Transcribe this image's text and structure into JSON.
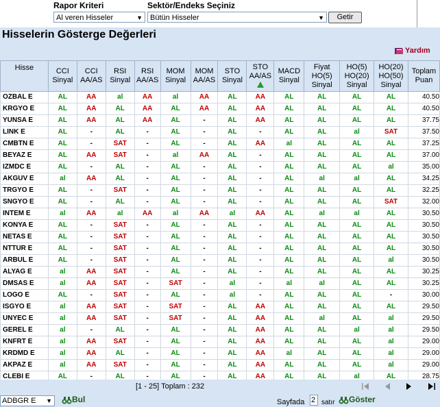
{
  "filters": {
    "report_label": "Rapor Kriteri",
    "report_value": "Al veren Hisseler",
    "sector_label": "Sektör/Endeks Seçiniz",
    "sector_value": "Bütün Hisseler",
    "button_label": "Getir"
  },
  "page_title": "Hisselerin Gösterge Değerleri",
  "help_label": "Yardım",
  "table": {
    "headers": [
      [
        "Hisse"
      ],
      [
        "CCI",
        "Sinyal"
      ],
      [
        "CCI",
        "AA/AS"
      ],
      [
        "RSI",
        "Sinyal"
      ],
      [
        "RSI",
        "AA/AS"
      ],
      [
        "MOM",
        "Sinyal"
      ],
      [
        "MOM",
        "AA/AS"
      ],
      [
        "STO",
        "Sinyal"
      ],
      [
        "STO",
        "AA/AS"
      ],
      [
        "MACD",
        "Sinyal"
      ],
      [
        "Fiyat",
        "HO(5)",
        "Sinyal"
      ],
      [
        "HO(5)",
        "HO(20)",
        "Sinyal"
      ],
      [
        "HO(20)",
        "HO(50)",
        "Sinyal"
      ],
      [
        "Toplam",
        "Puan"
      ]
    ],
    "rows": [
      [
        "OZBAL E",
        "AL",
        "AA",
        "al",
        "AA",
        "al",
        "AA",
        "AL",
        "AA",
        "AL",
        "AL",
        "AL",
        "AL",
        "40.50"
      ],
      [
        "KRGYO E",
        "AL",
        "AA",
        "AL",
        "AA",
        "AL",
        "AA",
        "AL",
        "AA",
        "AL",
        "AL",
        "AL",
        "AL",
        "40.50"
      ],
      [
        "YUNSA E",
        "AL",
        "AA",
        "AL",
        "AA",
        "AL",
        "-",
        "AL",
        "AA",
        "AL",
        "AL",
        "AL",
        "AL",
        "37.75"
      ],
      [
        "LINK E",
        "AL",
        "-",
        "AL",
        "-",
        "AL",
        "-",
        "AL",
        "-",
        "AL",
        "AL",
        "al",
        "SAT",
        "37.50"
      ],
      [
        "CMBTN E",
        "AL",
        "-",
        "SAT",
        "-",
        "AL",
        "-",
        "AL",
        "AA",
        "al",
        "AL",
        "AL",
        "AL",
        "37.25"
      ],
      [
        "BEYAZ E",
        "AL",
        "AA",
        "SAT",
        "-",
        "al",
        "AA",
        "AL",
        "-",
        "AL",
        "AL",
        "AL",
        "AL",
        "37.00"
      ],
      [
        "IZMDC E",
        "AL",
        "-",
        "AL",
        "-",
        "AL",
        "-",
        "AL",
        "-",
        "AL",
        "AL",
        "AL",
        "al",
        "35.00"
      ],
      [
        "AKGUV E",
        "al",
        "AA",
        "AL",
        "-",
        "AL",
        "-",
        "AL",
        "-",
        "AL",
        "al",
        "al",
        "AL",
        "34.25"
      ],
      [
        "TRGYO E",
        "AL",
        "-",
        "SAT",
        "-",
        "AL",
        "-",
        "AL",
        "-",
        "AL",
        "AL",
        "AL",
        "AL",
        "32.25"
      ],
      [
        "SNGYO E",
        "AL",
        "-",
        "AL",
        "-",
        "AL",
        "-",
        "AL",
        "-",
        "AL",
        "AL",
        "AL",
        "SAT",
        "32.00"
      ],
      [
        "INTEM E",
        "al",
        "AA",
        "al",
        "AA",
        "al",
        "AA",
        "al",
        "AA",
        "AL",
        "al",
        "al",
        "AL",
        "30.50"
      ],
      [
        "KONYA E",
        "AL",
        "-",
        "SAT",
        "-",
        "AL",
        "-",
        "AL",
        "-",
        "AL",
        "AL",
        "AL",
        "AL",
        "30.50"
      ],
      [
        "NETAS E",
        "AL",
        "-",
        "SAT",
        "-",
        "AL",
        "-",
        "AL",
        "-",
        "AL",
        "AL",
        "AL",
        "AL",
        "30.50"
      ],
      [
        "NTTUR E",
        "AL",
        "-",
        "SAT",
        "-",
        "AL",
        "-",
        "AL",
        "-",
        "AL",
        "AL",
        "AL",
        "AL",
        "30.50"
      ],
      [
        "ARBUL E",
        "AL",
        "-",
        "SAT",
        "-",
        "AL",
        "-",
        "AL",
        "-",
        "AL",
        "AL",
        "AL",
        "al",
        "30.50"
      ],
      [
        "ALYAG E",
        "al",
        "AA",
        "SAT",
        "-",
        "AL",
        "-",
        "AL",
        "-",
        "AL",
        "AL",
        "AL",
        "AL",
        "30.25"
      ],
      [
        "DMSAS E",
        "al",
        "AA",
        "SAT",
        "-",
        "SAT",
        "-",
        "al",
        "-",
        "al",
        "al",
        "AL",
        "AL",
        "30.25"
      ],
      [
        "LOGO E",
        "AL",
        "-",
        "SAT",
        "-",
        "AL",
        "-",
        "al",
        "-",
        "AL",
        "AL",
        "AL",
        "-",
        "30.00"
      ],
      [
        "ISGYO E",
        "al",
        "AA",
        "SAT",
        "-",
        "SAT",
        "-",
        "AL",
        "AA",
        "AL",
        "AL",
        "AL",
        "AL",
        "29.50"
      ],
      [
        "UNYEC E",
        "al",
        "AA",
        "SAT",
        "-",
        "SAT",
        "-",
        "AL",
        "AA",
        "AL",
        "al",
        "AL",
        "al",
        "29.50"
      ],
      [
        "GEREL E",
        "al",
        "-",
        "AL",
        "-",
        "AL",
        "-",
        "AL",
        "AA",
        "AL",
        "AL",
        "al",
        "al",
        "29.50"
      ],
      [
        "KNFRT E",
        "al",
        "AA",
        "SAT",
        "-",
        "AL",
        "-",
        "AL",
        "AA",
        "AL",
        "AL",
        "AL",
        "al",
        "29.00"
      ],
      [
        "KRDMD E",
        "al",
        "AA",
        "AL",
        "-",
        "AL",
        "-",
        "AL",
        "AA",
        "al",
        "AL",
        "AL",
        "al",
        "29.00"
      ],
      [
        "AKPAZ E",
        "al",
        "AA",
        "SAT",
        "-",
        "AL",
        "-",
        "AL",
        "AA",
        "AL",
        "AL",
        "AL",
        "al",
        "29.00"
      ],
      [
        "CLEBI E",
        "AL",
        "-",
        "AL",
        "-",
        "AL",
        "-",
        "AL",
        "AA",
        "AL",
        "AL",
        "al",
        "AL",
        "28.75"
      ]
    ]
  },
  "pager": {
    "range_text": "[1 - 25] Toplam : 232",
    "stock_select": "ADBGR E",
    "find_label": "Bul",
    "per_page_label": "Sayfada",
    "per_page_value": "2",
    "rows_label": "satır",
    "show_label": "Göster"
  },
  "icons": {
    "help": "book-icon",
    "sto_sort": "triangle-up-icon",
    "find": "binoculars-icon",
    "show": "binoculars-icon",
    "first": "first-page-icon",
    "prev": "prev-page-icon",
    "next": "next-page-icon",
    "last": "last-page-icon"
  },
  "colors": {
    "buy": "#0a8a12",
    "sell_or_aa": "#c00000",
    "panel_bg": "#d6e4f4"
  }
}
